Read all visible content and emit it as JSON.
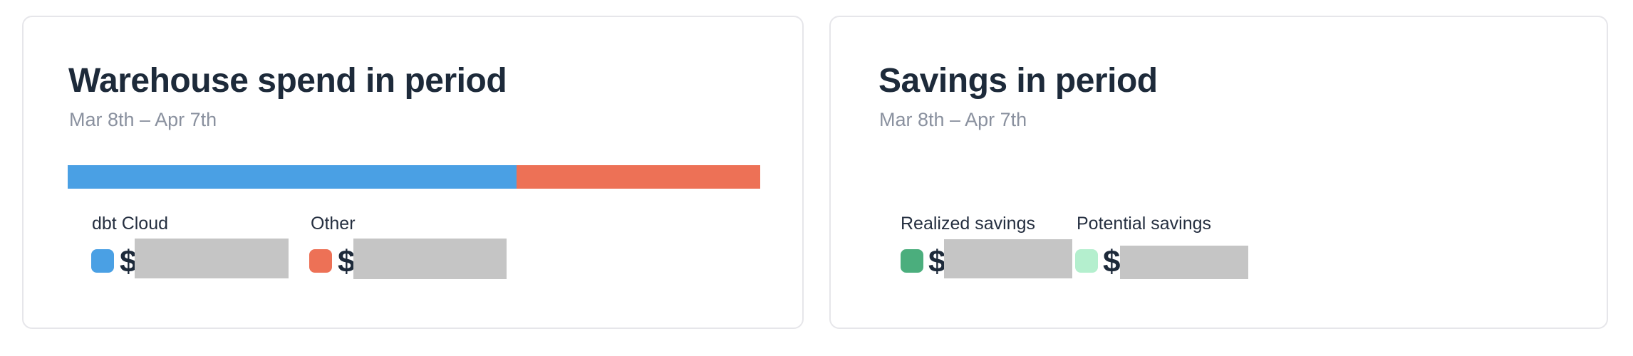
{
  "colors": {
    "title_text": "#1d2a3a",
    "subtitle_text": "#8a919f",
    "legend_label_text": "#252f40",
    "dbt_cloud_blue": "#4aa0e4",
    "other_orange": "#ed7156",
    "realized_savings_green": "#4bae7d",
    "potential_savings_mint": "#b4efce",
    "redaction_gray": "#c5c5c5",
    "card_border": "#e6e6ea",
    "card_background": "#ffffff"
  },
  "cards": [
    {
      "title": "Warehouse spend in period",
      "subtitle": "Mar 8th – Apr 7th",
      "legend": [
        {
          "label": "dbt Cloud",
          "currency_symbol": "$",
          "value_hidden": true,
          "swatch_color": "#4aa0e4"
        },
        {
          "label": "Other",
          "currency_symbol": "$",
          "value_hidden": true,
          "swatch_color": "#ed7156"
        }
      ]
    },
    {
      "title": "Savings in period",
      "subtitle": "Mar 8th – Apr 7th",
      "legend": [
        {
          "label": "Realized savings",
          "currency_symbol": "$",
          "value_hidden": true,
          "swatch_color": "#4bae7d"
        },
        {
          "label": "Potential savings",
          "currency_symbol": "$",
          "value_hidden": true,
          "swatch_color": "#b4efce"
        }
      ]
    }
  ],
  "chart_data": [
    {
      "type": "bar",
      "title": "Warehouse spend in period",
      "subtitle": "Mar 8th – Apr 7th",
      "orientation": "horizontal_stacked",
      "axes": "none",
      "grid": false,
      "legend_position": "below",
      "segments": [
        {
          "name": "dbt Cloud",
          "share_pct": 64.8,
          "color": "#4aa0e4",
          "amount_usd_hidden": true
        },
        {
          "name": "Other",
          "share_pct": 35.2,
          "color": "#ed7156",
          "amount_usd_hidden": true
        }
      ]
    },
    {
      "type": "table",
      "title": "Savings in period",
      "subtitle": "Mar 8th – Apr 7th",
      "categories": [
        "Realized savings",
        "Potential savings"
      ],
      "values_hidden": true,
      "colors": [
        "#4bae7d",
        "#b4efce"
      ],
      "legend_position": "below"
    }
  ]
}
